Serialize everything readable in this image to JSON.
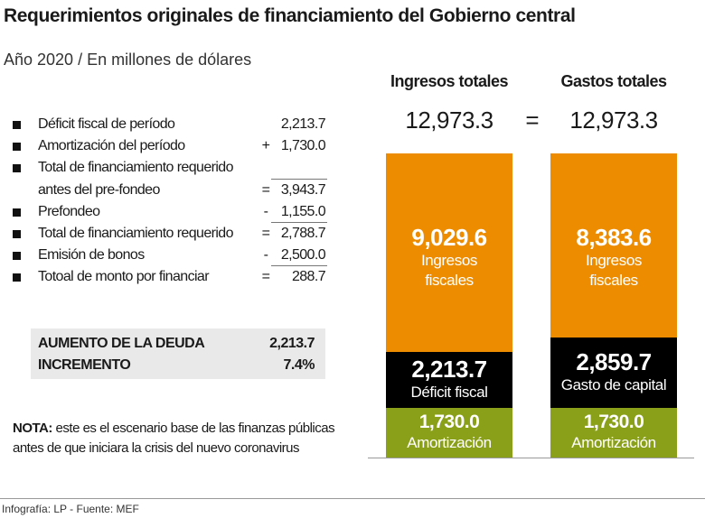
{
  "title": "Requerimientos originales de financiamiento del Gobierno central",
  "subtitle": "Año 2020 / En millones de dólares",
  "items": [
    {
      "label": "Déficit fiscal de período",
      "op": "",
      "value": "2,213.7"
    },
    {
      "label": "Amortización del período",
      "op": "+",
      "value": "1,730.0"
    },
    {
      "label": "Total de financiamiento requerido",
      "op": "",
      "value": ""
    },
    {
      "label": "antes del pre-fondeo",
      "op": "=",
      "value": "3,943.7"
    },
    {
      "label": "Prefondeo",
      "op": "-",
      "value": "1,155.0"
    },
    {
      "label": "Total de financiamiento requerido",
      "op": "=",
      "value": "2,788.7"
    },
    {
      "label": "Emisión de bonos",
      "op": "-",
      "value": "2,500.0"
    },
    {
      "label": "Totoal de monto por financiar",
      "op": "=",
      "value": "288.7"
    }
  ],
  "debt": {
    "label1": "AUMENTO DE LA DEUDA",
    "value1": "2,213.7",
    "label2": "INCREMENTO",
    "value2": "7.4%"
  },
  "note": {
    "bold": "NOTA:",
    "text1": " este es el escenario base de las finanzas públicas",
    "text2": "antes de que iniciara la crisis del nuevo coronavirus"
  },
  "source": "Infografía: LP - Fuente: MEF",
  "colors": {
    "orange": "#ee8c00",
    "black": "#000000",
    "green": "#8aa019"
  },
  "chart_data": {
    "type": "bar",
    "stacked": true,
    "categories": [
      "Ingresos totales",
      "Gastos totales"
    ],
    "totals": [
      "12,973.3",
      "12,973.3"
    ],
    "equals": "=",
    "bars": [
      {
        "segments": [
          {
            "value": "9,029.6",
            "label1": "Ingresos",
            "label2": "fiscales"
          },
          {
            "value": "2,213.7",
            "label1": "Déficit fiscal"
          },
          {
            "value": "1,730.0",
            "label1": "Amortización"
          }
        ]
      },
      {
        "segments": [
          {
            "value": "8,383.6",
            "label1": "Ingresos",
            "label2": "fiscales"
          },
          {
            "value": "2,859.7",
            "label1": "Gasto de capital"
          },
          {
            "value": "1,730.0",
            "label1": "Amortización"
          }
        ]
      }
    ]
  }
}
